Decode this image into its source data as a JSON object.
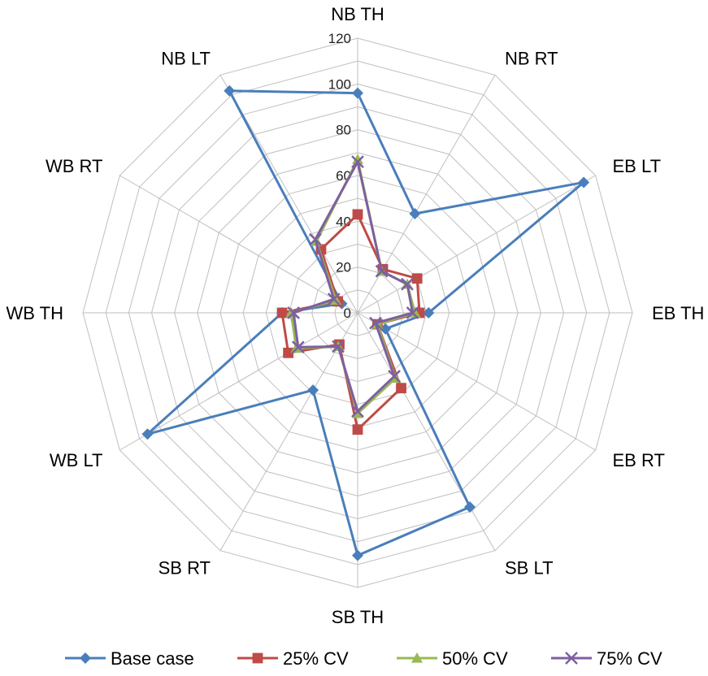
{
  "chart_data": {
    "type": "radar",
    "title": "",
    "categories": [
      "NB TH",
      "NB RT",
      "EB LT",
      "EB TH",
      "EB RT",
      "SB LT",
      "SB TH",
      "SB RT",
      "WB LT",
      "WB TH",
      "WB RT",
      "NB LT"
    ],
    "rlim": [
      0,
      120
    ],
    "ticks": [
      "0",
      "20",
      "40",
      "60",
      "80",
      "100",
      "120"
    ],
    "grid": true,
    "legend": "bottom",
    "series": [
      {
        "name": "Base case",
        "color": "#4a7ebb",
        "marker": "diamond",
        "values": [
          96,
          50,
          114,
          31,
          14,
          98,
          106,
          39,
          106,
          33,
          8,
          112
        ]
      },
      {
        "name": "25% CV",
        "color": "#be4b48",
        "marker": "square",
        "values": [
          43,
          22,
          30,
          27,
          10,
          38,
          51,
          16,
          35,
          33,
          10,
          32
        ]
      },
      {
        "name": "50% CV",
        "color": "#98b954",
        "marker": "triangle",
        "values": [
          67,
          21,
          25,
          25,
          10,
          33,
          44,
          17,
          31,
          29,
          11,
          36
        ]
      },
      {
        "name": "75% CV",
        "color": "#7d60a0",
        "marker": "x",
        "values": [
          66,
          21,
          25,
          24,
          9,
          32,
          43,
          17,
          30,
          28,
          12,
          37
        ]
      }
    ]
  }
}
